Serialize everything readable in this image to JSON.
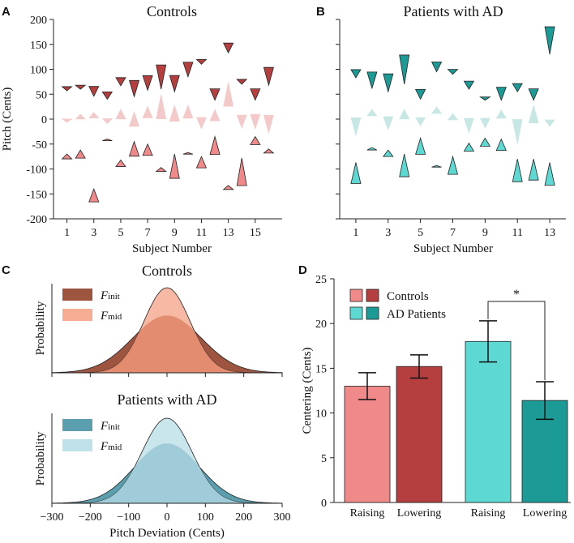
{
  "panel_letters": {
    "a": "A",
    "b": "B",
    "c": "C",
    "d": "D"
  },
  "colors": {
    "controls_dark": "#b53f3f",
    "controls_light": "#f08a8a",
    "controls_pale": "#f3c9c9",
    "ad_dark": "#1b9a96",
    "ad_light": "#5ed8d2",
    "ad_pale": "#c7e7e4",
    "c_init_controls": "#9e5540",
    "c_mid_controls": "#f7ad94",
    "c_overlap_controls": "#e38a6e",
    "c_init_ad": "#5b9ead",
    "c_mid_ad": "#bfe2ea",
    "c_overlap_ad": "#9fcad7"
  },
  "chart_data": [
    {
      "id": "A",
      "type": "scatter",
      "title": "Controls",
      "xlabel": "Subject Number",
      "ylabel": "Pitch (Cents)",
      "xlim": [
        0,
        17
      ],
      "ylim": [
        -200,
        200
      ],
      "xticks": [
        1,
        3,
        5,
        7,
        9,
        11,
        13,
        15
      ],
      "yticks": [
        -200,
        -150,
        -100,
        -50,
        0,
        50,
        100,
        150,
        200
      ],
      "points": [
        {
          "subject": 1,
          "upper": 57,
          "middle": -3,
          "lower": -70,
          "size_upper": 5,
          "size_middle": 4,
          "size_lower": 6
        },
        {
          "subject": 2,
          "upper": 60,
          "middle": 5,
          "lower": -62,
          "size_upper": 5,
          "size_middle": 6,
          "size_lower": 10
        },
        {
          "subject": 3,
          "upper": 46,
          "middle": 8,
          "lower": -140,
          "size_upper": 12,
          "size_middle": 7,
          "size_lower": 16
        },
        {
          "subject": 4,
          "upper": 40,
          "middle": -4,
          "lower": -40,
          "size_upper": 9,
          "size_middle": 6,
          "size_lower": 2
        },
        {
          "subject": 5,
          "upper": 67,
          "middle": 10,
          "lower": -82,
          "size_upper": 10,
          "size_middle": 12,
          "size_lower": 8
        },
        {
          "subject": 6,
          "upper": 45,
          "middle": 0,
          "lower": -45,
          "size_upper": 20,
          "size_middle": 18,
          "size_lower": 18
        },
        {
          "subject": 7,
          "upper": 58,
          "middle": 14,
          "lower": -50,
          "size_upper": 18,
          "size_middle": 14,
          "size_lower": 14
        },
        {
          "subject": 8,
          "upper": 60,
          "middle": 25,
          "lower": -97,
          "size_upper": 30,
          "size_middle": 30,
          "size_lower": 5
        },
        {
          "subject": 9,
          "upper": 55,
          "middle": 12,
          "lower": -70,
          "size_upper": 20,
          "size_middle": 20,
          "size_lower": 30
        },
        {
          "subject": 10,
          "upper": 85,
          "middle": 15,
          "lower": -67,
          "size_upper": 18,
          "size_middle": 16,
          "size_lower": 2
        },
        {
          "subject": 11,
          "upper": 110,
          "middle": -8,
          "lower": -75,
          "size_upper": 6,
          "size_middle": 14,
          "size_lower": 14
        },
        {
          "subject": 12,
          "upper": 38,
          "middle": 8,
          "lower": -35,
          "size_upper": 14,
          "size_middle": 14,
          "size_lower": 22
        },
        {
          "subject": 13,
          "upper": 133,
          "middle": 50,
          "lower": -133,
          "size_upper": 12,
          "size_middle": 30,
          "size_lower": 5
        },
        {
          "subject": 14,
          "upper": 70,
          "middle": -5,
          "lower": -78,
          "size_upper": 6,
          "size_middle": 16,
          "size_lower": 34
        },
        {
          "subject": 15,
          "upper": 38,
          "middle": -5,
          "lower": -35,
          "size_upper": 14,
          "size_middle": 18,
          "size_lower": 10
        },
        {
          "subject": 16,
          "upper": 68,
          "middle": -10,
          "lower": -60,
          "size_upper": 22,
          "size_middle": 22,
          "size_lower": 5
        }
      ]
    },
    {
      "id": "B",
      "type": "scatter",
      "title": "Patients with AD",
      "xlabel": "Subject Number",
      "ylabel": "",
      "xlim": [
        0,
        14
      ],
      "ylim": [
        -200,
        200
      ],
      "xticks": [
        1,
        3,
        5,
        7,
        9,
        11,
        13
      ],
      "yticks": [
        -200,
        -150,
        -100,
        -50,
        0,
        50,
        100,
        150,
        200
      ],
      "points": [
        {
          "subject": 1,
          "upper": 83,
          "middle": -15,
          "lower": -87,
          "size_upper": 10,
          "size_middle": 22,
          "size_lower": 26
        },
        {
          "subject": 2,
          "upper": 62,
          "middle": 13,
          "lower": -57,
          "size_upper": 20,
          "size_middle": 8,
          "size_lower": 3
        },
        {
          "subject": 3,
          "upper": 55,
          "middle": -8,
          "lower": -62,
          "size_upper": 22,
          "size_middle": 16,
          "size_lower": 8
        },
        {
          "subject": 4,
          "upper": 70,
          "middle": 10,
          "lower": -70,
          "size_upper": 36,
          "size_middle": 12,
          "size_lower": 28
        },
        {
          "subject": 5,
          "upper": 40,
          "middle": -5,
          "lower": -38,
          "size_upper": 12,
          "size_middle": 10,
          "size_lower": 20
        },
        {
          "subject": 6,
          "upper": 95,
          "middle": 18,
          "lower": -93,
          "size_upper": 12,
          "size_middle": 8,
          "size_lower": 2
        },
        {
          "subject": 7,
          "upper": 90,
          "middle": 5,
          "lower": -75,
          "size_upper": 6,
          "size_middle": 8,
          "size_lower": 22
        },
        {
          "subject": 8,
          "upper": 60,
          "middle": -13,
          "lower": -48,
          "size_upper": 10,
          "size_middle": 18,
          "size_lower": 10
        },
        {
          "subject": 9,
          "upper": 38,
          "middle": -8,
          "lower": -38,
          "size_upper": 4,
          "size_middle": 12,
          "size_lower": 10
        },
        {
          "subject": 10,
          "upper": 38,
          "middle": 10,
          "lower": -40,
          "size_upper": 16,
          "size_middle": 10,
          "size_lower": 14
        },
        {
          "subject": 11,
          "upper": 55,
          "middle": -25,
          "lower": -80,
          "size_upper": 10,
          "size_middle": 30,
          "size_lower": 28
        },
        {
          "subject": 12,
          "upper": 38,
          "middle": 10,
          "lower": -80,
          "size_upper": 14,
          "size_middle": 22,
          "size_lower": 26
        },
        {
          "subject": 13,
          "upper": 130,
          "middle": -8,
          "lower": -87,
          "size_upper": 34,
          "size_middle": 8,
          "size_lower": 28
        }
      ]
    },
    {
      "id": "C",
      "type": "area",
      "xlabel": "Pitch Deviation (Cents)",
      "ylabel": "Probability",
      "xlim": [
        -300,
        300
      ],
      "xticks": [
        -300,
        -200,
        -100,
        0,
        100,
        200,
        300
      ],
      "subplots": [
        {
          "title": "Controls",
          "series": [
            {
              "name": "init",
              "sd": 90,
              "peak": 0.67
            },
            {
              "name": "mid",
              "sd": 60,
              "peak": 1.0
            }
          ]
        },
        {
          "title": "Patients with AD",
          "series": [
            {
              "name": "init",
              "sd": 85,
              "peak": 0.7
            },
            {
              "name": "mid",
              "sd": 65,
              "peak": 1.0
            }
          ]
        }
      ],
      "legend": [
        {
          "symbol": "F",
          "sub": "init"
        },
        {
          "symbol": "F",
          "sub": "mid"
        }
      ]
    },
    {
      "id": "D",
      "type": "bar",
      "ylabel": "Centering (Cents)",
      "ylim": [
        0,
        25
      ],
      "yticks": [
        0,
        5,
        10,
        15,
        20,
        25
      ],
      "categories": [
        "Raising",
        "Lowering",
        "Raising",
        "Lowering"
      ],
      "values": [
        13.0,
        15.2,
        18.0,
        11.4
      ],
      "errors": [
        1.5,
        1.3,
        2.3,
        2.1
      ],
      "groups": [
        "Controls",
        "Controls",
        "AD Patients",
        "AD Patients"
      ],
      "legend": [
        "Controls",
        "AD Patients"
      ],
      "significance": {
        "between": [
          2,
          3
        ],
        "label": "*"
      }
    }
  ]
}
